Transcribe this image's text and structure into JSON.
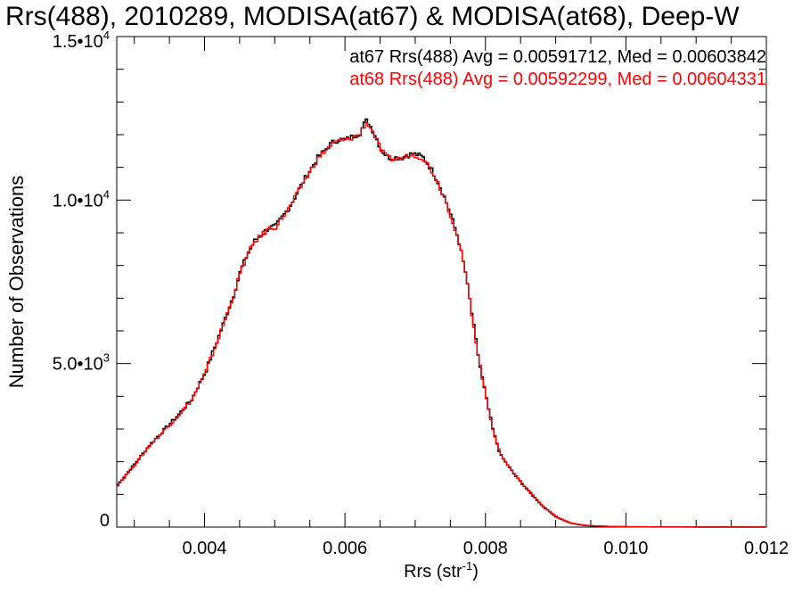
{
  "chart_data": {
    "type": "line",
    "title": "Rrs(488), 2010289, MODISA(at67) & MODISA(at68), Deep-W",
    "xlabel": "Rrs (str",
    "xlabel_sup": "-1",
    "xlabel_close": ")",
    "ylabel": "Number of Observations",
    "xlim": [
      0.00275,
      0.012
    ],
    "ylim": [
      0,
      15000
    ],
    "x_ticks": [
      {
        "value": 0.004,
        "label": "0.004"
      },
      {
        "value": 0.006,
        "label": "0.006"
      },
      {
        "value": 0.008,
        "label": "0.008"
      },
      {
        "value": 0.01,
        "label": "0.010"
      },
      {
        "value": 0.012,
        "label": "0.012"
      }
    ],
    "y_ticks": [
      {
        "value": 0,
        "mant": "0",
        "exp": ""
      },
      {
        "value": 5000,
        "mant": "5.0•10",
        "exp": "3"
      },
      {
        "value": 10000,
        "mant": "1.0•10",
        "exp": "4"
      },
      {
        "value": 15000,
        "mant": "1.5•10",
        "exp": "4"
      }
    ],
    "legend": [
      {
        "text": "at67 Rrs(488) Avg = 0.00591712, Med = 0.00603842",
        "color": "#000000"
      },
      {
        "text": "at68 Rrs(488) Avg = 0.00592299, Med = 0.00604331",
        "color": "#ff0000"
      }
    ],
    "series": [
      {
        "color": "#000000",
        "x": [
          0.00275,
          0.003,
          0.0032,
          0.0034,
          0.0036,
          0.0038,
          0.004,
          0.0042,
          0.0044,
          0.0045,
          0.0046,
          0.0047,
          0.0048,
          0.0049,
          0.005,
          0.0052,
          0.0054,
          0.0056,
          0.0058,
          0.0059,
          0.006,
          0.0061,
          0.0062,
          0.00625,
          0.0063,
          0.00635,
          0.0064,
          0.0065,
          0.0066,
          0.0067,
          0.0068,
          0.0069,
          0.007,
          0.0071,
          0.0072,
          0.0073,
          0.0074,
          0.0075,
          0.0076,
          0.0077,
          0.0078,
          0.0079,
          0.008,
          0.0081,
          0.0082,
          0.0084,
          0.0086,
          0.0088,
          0.009,
          0.0092,
          0.0094,
          0.0096,
          0.0098,
          0.01,
          0.0105,
          0.011,
          0.0115,
          0.012
        ],
        "y": [
          1300,
          1950,
          2500,
          2950,
          3400,
          3900,
          4750,
          5900,
          7100,
          7850,
          8350,
          8750,
          8950,
          9150,
          9200,
          9800,
          10600,
          11300,
          11750,
          11850,
          11850,
          11950,
          12050,
          12300,
          12450,
          12250,
          12050,
          11550,
          11300,
          11300,
          11300,
          11400,
          11400,
          11300,
          11000,
          10600,
          10100,
          9500,
          8800,
          7800,
          6400,
          5000,
          3900,
          2900,
          2200,
          1600,
          1100,
          640,
          300,
          120,
          50,
          30,
          15,
          10,
          5,
          3,
          2,
          1
        ]
      },
      {
        "color": "#ff0000",
        "x": [
          0.00275,
          0.003,
          0.0032,
          0.0034,
          0.0036,
          0.0038,
          0.004,
          0.0042,
          0.0044,
          0.0045,
          0.0046,
          0.0047,
          0.0048,
          0.0049,
          0.005,
          0.0052,
          0.0054,
          0.0056,
          0.0058,
          0.0059,
          0.006,
          0.0061,
          0.0062,
          0.00625,
          0.0063,
          0.00635,
          0.0064,
          0.0065,
          0.0066,
          0.0067,
          0.0068,
          0.0069,
          0.007,
          0.0071,
          0.0072,
          0.0073,
          0.0074,
          0.0075,
          0.0076,
          0.0077,
          0.0078,
          0.0079,
          0.008,
          0.0081,
          0.0082,
          0.0084,
          0.0086,
          0.0088,
          0.009,
          0.0092,
          0.0094,
          0.0096,
          0.0098,
          0.01,
          0.0105,
          0.011,
          0.0115,
          0.012
        ],
        "y": [
          1280,
          1930,
          2480,
          2930,
          3380,
          3880,
          4720,
          5870,
          7080,
          7830,
          8330,
          8730,
          8930,
          9130,
          9180,
          9780,
          10570,
          11270,
          11720,
          11820,
          11820,
          11920,
          12020,
          12250,
          12380,
          12210,
          12010,
          11520,
          11270,
          11260,
          11270,
          11370,
          11370,
          11270,
          10970,
          10580,
          10080,
          9480,
          8780,
          7790,
          6400,
          5020,
          3920,
          2920,
          2220,
          1620,
          1120,
          650,
          310,
          125,
          52,
          31,
          16,
          10,
          5,
          3,
          2,
          1
        ]
      }
    ]
  }
}
